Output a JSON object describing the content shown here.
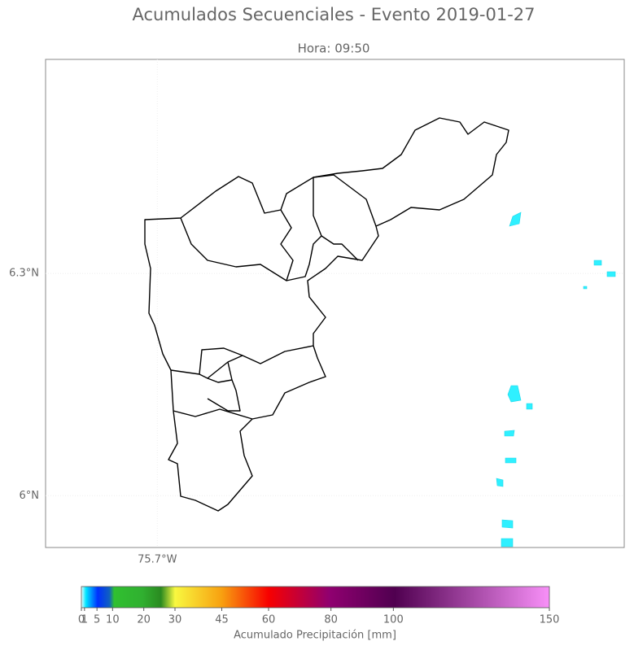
{
  "chart_data": {
    "type": "map",
    "title": "Acumulados Secuenciales - Evento 2019-01-27",
    "subtitle": "Hora: 09:50",
    "xlim": [
      -75.851,
      -75.069
    ],
    "ylim": [
      5.93,
      6.589
    ],
    "xticks": [
      {
        "value": -75.7,
        "label": "75.7°W"
      }
    ],
    "yticks": [
      {
        "value": 6.0,
        "label": "6°N"
      },
      {
        "value": 6.3,
        "label": "6.3°N"
      }
    ],
    "grid": true,
    "colorbar": {
      "label": "Acumulado Precipitación [mm]",
      "lim": [
        0,
        150
      ],
      "ticks": [
        0,
        1,
        5,
        10,
        20,
        30,
        45,
        60,
        80,
        100,
        150
      ]
    }
  }
}
